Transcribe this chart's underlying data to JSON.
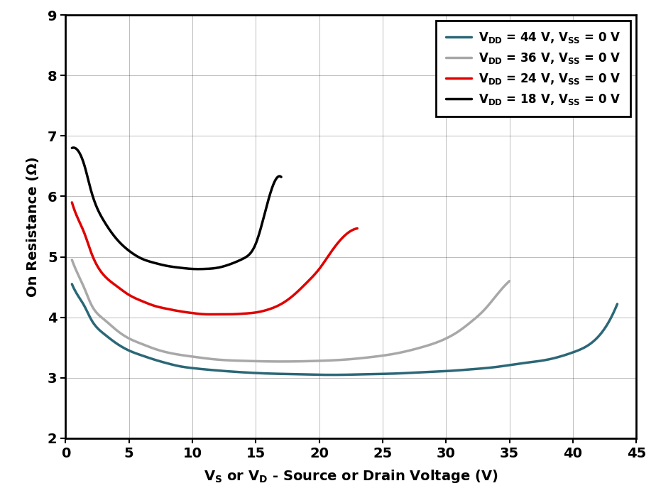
{
  "xlabel_text": "V$_\\mathrm{S}$ or V$_\\mathrm{D}$ - Source or Drain Voltage (V)",
  "ylabel_text": "On Resistance (Ω)",
  "xlim": [
    0,
    45
  ],
  "ylim": [
    2,
    9
  ],
  "xticks": [
    0,
    5,
    10,
    15,
    20,
    25,
    30,
    35,
    40,
    45
  ],
  "yticks": [
    2,
    3,
    4,
    5,
    6,
    7,
    8,
    9
  ],
  "background_color": "#ffffff",
  "grid_color": "#000000",
  "grid_alpha": 0.2,
  "curves": [
    {
      "label": "$\\mathbf{V_{DD}}$ = 44 V, $\\mathbf{V_{SS}}$ = 0 V",
      "color": "#2b6777",
      "linewidth": 2.5,
      "x": [
        0.5,
        1.0,
        1.5,
        2,
        3,
        4,
        5,
        6,
        7,
        8,
        9,
        10,
        12,
        14,
        16,
        18,
        20,
        22,
        24,
        26,
        28,
        30,
        32,
        34,
        36,
        38,
        40,
        42,
        43.5
      ],
      "y": [
        4.55,
        4.35,
        4.18,
        3.97,
        3.73,
        3.57,
        3.45,
        3.37,
        3.3,
        3.24,
        3.19,
        3.16,
        3.12,
        3.09,
        3.07,
        3.06,
        3.05,
        3.05,
        3.06,
        3.07,
        3.09,
        3.11,
        3.14,
        3.18,
        3.24,
        3.3,
        3.42,
        3.68,
        4.22
      ]
    },
    {
      "label": "$\\mathbf{V_{DD}}$ = 36 V, $\\mathbf{V_{SS}}$ = 0 V",
      "color": "#a8a8a8",
      "linewidth": 2.5,
      "x": [
        0.5,
        1.0,
        1.5,
        2,
        3,
        4,
        5,
        6,
        7,
        8,
        9,
        10,
        12,
        14,
        16,
        18,
        20,
        22,
        24,
        26,
        28,
        30,
        31,
        32,
        33,
        34,
        35.0
      ],
      "y": [
        4.95,
        4.7,
        4.47,
        4.22,
        3.97,
        3.79,
        3.65,
        3.56,
        3.48,
        3.42,
        3.38,
        3.35,
        3.3,
        3.28,
        3.27,
        3.27,
        3.28,
        3.3,
        3.34,
        3.4,
        3.5,
        3.65,
        3.77,
        3.93,
        4.12,
        4.37,
        4.6
      ]
    },
    {
      "label": "$\\mathbf{V_{DD}}$ = 24 V, $\\mathbf{V_{SS}}$ = 0 V",
      "color": "#e00000",
      "linewidth": 2.5,
      "x": [
        0.5,
        1.0,
        1.5,
        2,
        3,
        4,
        5,
        6,
        7,
        8,
        9,
        10,
        11,
        12,
        13,
        14,
        15,
        16,
        17,
        18,
        19,
        20,
        21,
        22,
        23.0
      ],
      "y": [
        5.9,
        5.62,
        5.38,
        5.08,
        4.7,
        4.52,
        4.37,
        4.27,
        4.19,
        4.14,
        4.1,
        4.07,
        4.05,
        4.05,
        4.05,
        4.06,
        4.08,
        4.13,
        4.22,
        4.37,
        4.57,
        4.8,
        5.1,
        5.35,
        5.47
      ]
    },
    {
      "label": "$\\mathbf{V_{DD}}$ = 18 V, $\\mathbf{V_{SS}}$ = 0 V",
      "color": "#000000",
      "linewidth": 2.5,
      "x": [
        0.5,
        1.0,
        1.5,
        2,
        3,
        4,
        5,
        6,
        7,
        8,
        9,
        10,
        11,
        12,
        13,
        14,
        15,
        16,
        17.0
      ],
      "y": [
        6.8,
        6.75,
        6.5,
        6.1,
        5.6,
        5.3,
        5.1,
        4.97,
        4.9,
        4.85,
        4.82,
        4.8,
        4.8,
        4.82,
        4.88,
        4.97,
        5.22,
        5.95,
        6.32
      ]
    }
  ]
}
